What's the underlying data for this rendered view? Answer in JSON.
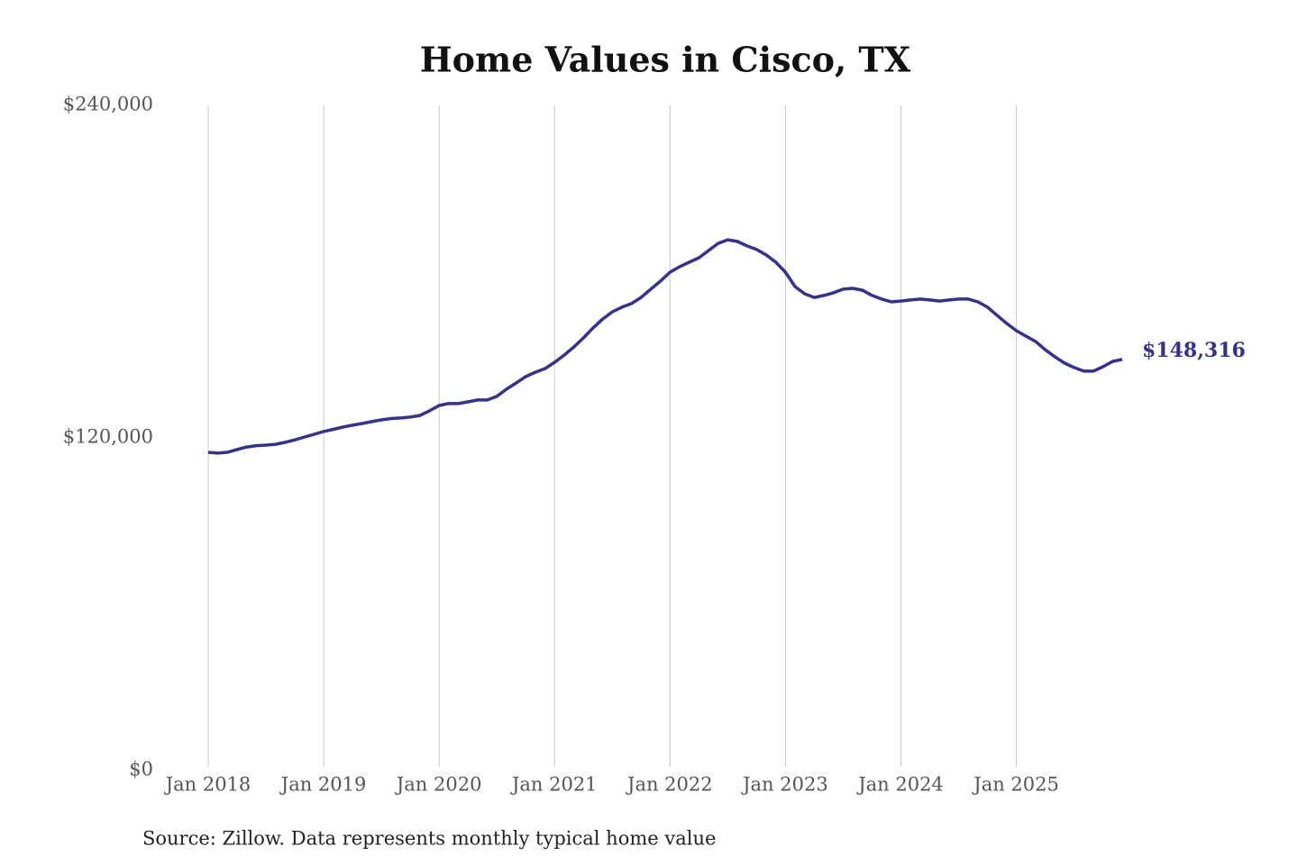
{
  "chart_data": {
    "type": "line",
    "title": "Home Values in Cisco, TX",
    "source": "Source: Zillow. Data represents monthly typical home value",
    "color": "#35318f",
    "x": [
      "2018-01",
      "2018-02",
      "2018-03",
      "2018-04",
      "2018-05",
      "2018-06",
      "2018-07",
      "2018-08",
      "2018-09",
      "2018-10",
      "2018-11",
      "2018-12",
      "2019-01",
      "2019-02",
      "2019-03",
      "2019-04",
      "2019-05",
      "2019-06",
      "2019-07",
      "2019-08",
      "2019-09",
      "2019-10",
      "2019-11",
      "2019-12",
      "2020-01",
      "2020-02",
      "2020-03",
      "2020-04",
      "2020-05",
      "2020-06",
      "2020-07",
      "2020-08",
      "2020-09",
      "2020-10",
      "2020-11",
      "2020-12",
      "2021-01",
      "2021-02",
      "2021-03",
      "2021-04",
      "2021-05",
      "2021-06",
      "2021-07",
      "2021-08",
      "2021-09",
      "2021-10",
      "2021-11",
      "2021-12",
      "2022-01",
      "2022-02",
      "2022-03",
      "2022-04",
      "2022-05",
      "2022-06",
      "2022-07",
      "2022-08",
      "2022-09",
      "2022-10",
      "2022-11",
      "2022-12",
      "2023-01",
      "2023-02",
      "2023-03",
      "2023-04",
      "2023-05",
      "2023-06",
      "2023-07",
      "2023-08",
      "2023-09",
      "2023-10",
      "2023-11",
      "2023-12",
      "2024-01",
      "2024-02",
      "2024-03",
      "2024-04",
      "2024-05",
      "2024-06",
      "2024-07",
      "2024-08",
      "2024-09",
      "2024-10",
      "2024-11",
      "2024-12",
      "2025-01",
      "2025-02",
      "2025-03",
      "2025-04",
      "2025-05",
      "2025-06",
      "2025-07",
      "2025-08",
      "2025-09",
      "2025-10",
      "2025-11",
      "2025-12"
    ],
    "values": [
      114800,
      114500,
      114800,
      115800,
      116700,
      117200,
      117400,
      117700,
      118400,
      119300,
      120300,
      121300,
      122300,
      123100,
      123900,
      124600,
      125200,
      125900,
      126500,
      127000,
      127200,
      127500,
      128100,
      129800,
      131700,
      132400,
      132400,
      133000,
      133700,
      133700,
      135000,
      137600,
      139800,
      142100,
      143700,
      145000,
      147300,
      149900,
      152800,
      156100,
      159700,
      162900,
      165500,
      167200,
      168500,
      170700,
      173700,
      176600,
      179800,
      181800,
      183400,
      185000,
      187600,
      190200,
      191500,
      190900,
      189300,
      188000,
      186000,
      183400,
      179800,
      174600,
      172000,
      170700,
      171400,
      172400,
      173700,
      174000,
      173300,
      171400,
      170100,
      169100,
      169400,
      169800,
      170100,
      169800,
      169400,
      169800,
      170100,
      170100,
      169100,
      167200,
      164200,
      161300,
      158700,
      156700,
      154800,
      151800,
      149300,
      147000,
      145400,
      144100,
      144100,
      145700,
      147600,
      148316
    ],
    "value_labels": [
      null,
      null,
      null,
      null,
      null,
      null,
      null,
      null,
      null,
      null,
      null,
      null,
      null,
      null,
      null,
      null,
      null,
      null,
      null,
      null,
      null,
      null,
      null,
      null,
      null,
      null,
      null,
      null,
      null,
      null,
      null,
      null,
      null,
      null,
      null,
      null,
      null,
      null,
      null,
      null,
      null,
      null,
      null,
      null,
      null,
      null,
      null,
      null,
      null,
      null,
      null,
      null,
      null,
      null,
      null,
      null,
      null,
      null,
      null,
      null,
      null,
      null,
      null,
      null,
      null,
      null,
      null,
      null,
      null,
      null,
      null,
      null,
      null,
      null,
      null,
      null,
      null,
      null,
      null,
      null,
      null,
      null,
      null,
      null,
      null,
      null,
      null,
      null,
      null,
      null,
      null,
      null,
      null,
      null,
      null,
      "$148,316"
    ],
    "xlim": [
      "2018-01",
      "2025-12"
    ],
    "xticks": [
      {
        "value": "2018-01",
        "label": "Jan 2018"
      },
      {
        "value": "2019-01",
        "label": "Jan 2019"
      },
      {
        "value": "2020-01",
        "label": "Jan 2020"
      },
      {
        "value": "2021-01",
        "label": "Jan 2021"
      },
      {
        "value": "2022-01",
        "label": "Jan 2022"
      },
      {
        "value": "2023-01",
        "label": "Jan 2023"
      },
      {
        "value": "2024-01",
        "label": "Jan 2024"
      },
      {
        "value": "2025-01",
        "label": "Jan 2025"
      }
    ],
    "ylim": [
      0,
      240000
    ],
    "yticks": [
      {
        "value": 0,
        "label": "$0"
      },
      {
        "value": 120000,
        "label": "$120,000"
      },
      {
        "value": 240000,
        "label": "$240,000"
      }
    ],
    "grid": "x"
  }
}
